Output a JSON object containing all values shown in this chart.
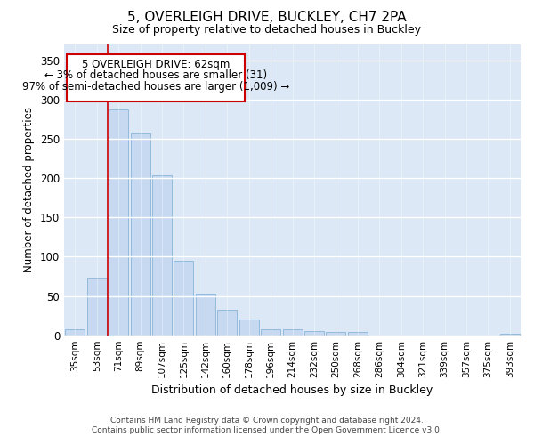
{
  "title": "5, OVERLEIGH DRIVE, BUCKLEY, CH7 2PA",
  "subtitle": "Size of property relative to detached houses in Buckley",
  "xlabel": "Distribution of detached houses by size in Buckley",
  "ylabel": "Number of detached properties",
  "categories": [
    "35sqm",
    "53sqm",
    "71sqm",
    "89sqm",
    "107sqm",
    "125sqm",
    "142sqm",
    "160sqm",
    "178sqm",
    "196sqm",
    "214sqm",
    "232sqm",
    "250sqm",
    "268sqm",
    "286sqm",
    "304sqm",
    "321sqm",
    "339sqm",
    "357sqm",
    "375sqm",
    "393sqm"
  ],
  "values": [
    8,
    73,
    287,
    258,
    204,
    95,
    53,
    32,
    20,
    8,
    8,
    5,
    4,
    4,
    0,
    0,
    0,
    0,
    0,
    0,
    2
  ],
  "bar_color": "#c6d9f0",
  "bar_edge_color": "#8ab4d8",
  "red_line_x": 1.5,
  "annotation_text_line1": "5 OVERLEIGH DRIVE: 62sqm",
  "annotation_text_line2": "← 3% of detached houses are smaller (31)",
  "annotation_text_line3": "97% of semi-detached houses are larger (1,009) →",
  "annotation_box_color": "#ffffff",
  "annotation_border_color": "#cc0000",
  "ylim": [
    0,
    370
  ],
  "yticks": [
    0,
    50,
    100,
    150,
    200,
    250,
    300,
    350
  ],
  "footer_line1": "Contains HM Land Registry data © Crown copyright and database right 2024.",
  "footer_line2": "Contains public sector information licensed under the Open Government Licence v3.0.",
  "bg_color": "#ffffff",
  "plot_bg_color": "#dce8f5"
}
